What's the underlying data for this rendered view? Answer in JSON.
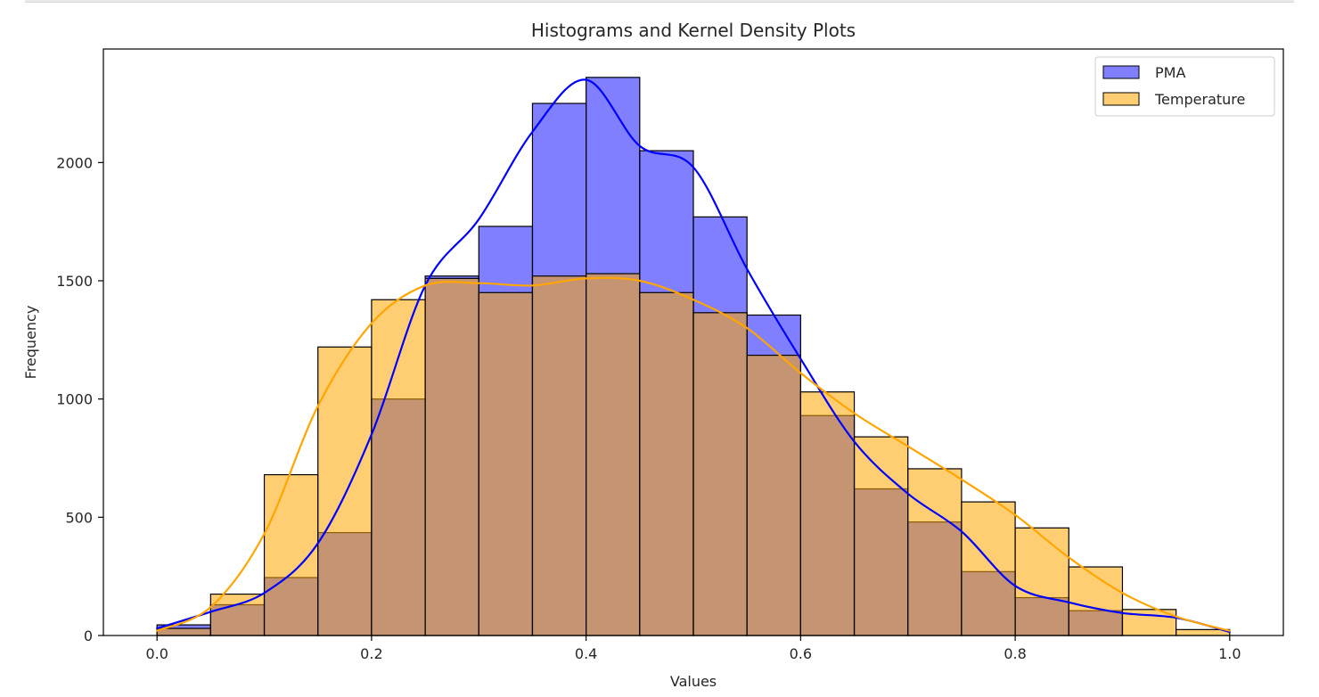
{
  "chart_data": {
    "type": "histogram",
    "title": "Histograms and Kernel Density Plots",
    "xlabel": "Values",
    "ylabel": "Frequency",
    "xlim": [
      -0.05,
      1.05
    ],
    "ylim": [
      0,
      2480
    ],
    "x_ticks": [
      0.0,
      0.2,
      0.4,
      0.6,
      0.8,
      1.0
    ],
    "x_tick_labels": [
      "0.0",
      "0.2",
      "0.4",
      "0.6",
      "0.8",
      "1.0"
    ],
    "y_ticks": [
      0,
      500,
      1000,
      1500,
      2000
    ],
    "y_tick_labels": [
      "0",
      "500",
      "1000",
      "1500",
      "2000"
    ],
    "bin_edges": [
      0.0,
      0.05,
      0.1,
      0.15,
      0.2,
      0.25,
      0.3,
      0.35,
      0.4,
      0.45,
      0.5,
      0.55,
      0.6,
      0.65,
      0.7,
      0.75,
      0.8,
      0.85,
      0.9,
      0.95,
      1.0
    ],
    "legend_position": "upper right",
    "grid": false,
    "series": [
      {
        "name": "PMA",
        "color": "#0000ff",
        "bar_opacity": 0.5,
        "counts": [
          45,
          130,
          245,
          435,
          1000,
          1520,
          1730,
          2250,
          2360,
          2050,
          1770,
          1355,
          930,
          620,
          480,
          270,
          160,
          105,
          0,
          0
        ],
        "kde": {
          "x": [
            0.0,
            0.05,
            0.1,
            0.15,
            0.2,
            0.25,
            0.3,
            0.35,
            0.4,
            0.45,
            0.5,
            0.55,
            0.6,
            0.65,
            0.7,
            0.75,
            0.8,
            0.85,
            0.9,
            0.95,
            1.0
          ],
          "y": [
            30,
            100,
            180,
            390,
            850,
            1480,
            1760,
            2130,
            2350,
            2070,
            1980,
            1550,
            1170,
            820,
            600,
            440,
            210,
            140,
            95,
            75,
            15
          ]
        }
      },
      {
        "name": "Temperature",
        "color": "#ffa500",
        "bar_opacity": 0.55,
        "counts": [
          30,
          175,
          680,
          1220,
          1420,
          1510,
          1450,
          1520,
          1530,
          1450,
          1365,
          1185,
          1030,
          840,
          705,
          565,
          455,
          290,
          110,
          25
        ],
        "kde": {
          "x": [
            0.0,
            0.05,
            0.1,
            0.15,
            0.2,
            0.25,
            0.3,
            0.35,
            0.4,
            0.45,
            0.5,
            0.55,
            0.6,
            0.65,
            0.7,
            0.75,
            0.8,
            0.85,
            0.9,
            0.95,
            1.0
          ],
          "y": [
            20,
            120,
            430,
            970,
            1320,
            1480,
            1490,
            1480,
            1510,
            1500,
            1420,
            1300,
            1110,
            940,
            800,
            660,
            510,
            330,
            180,
            80,
            20
          ]
        }
      }
    ]
  }
}
